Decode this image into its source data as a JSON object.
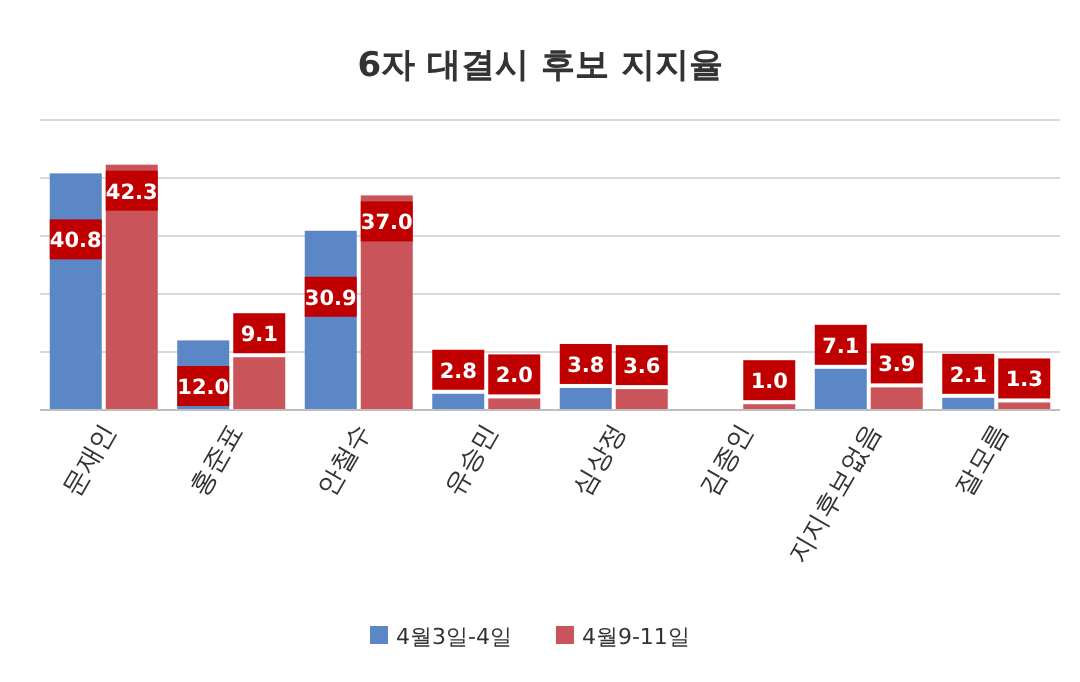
{
  "chart_data": {
    "type": "bar",
    "title": "6자 대결시 후보 지지율",
    "categories": [
      "문재인",
      "홍준표",
      "안철수",
      "유승민",
      "심상정",
      "김종인",
      "지지후보없음",
      "잘모름"
    ],
    "series": [
      {
        "name": "4월3일-4일",
        "color": "#5b87c7",
        "values": [
          40.8,
          12.0,
          30.9,
          2.8,
          3.8,
          null,
          7.1,
          2.1
        ],
        "value_labels": [
          "40.8",
          "12.0",
          "30.9",
          "2.8",
          "3.8",
          null,
          "7.1",
          "2.1"
        ]
      },
      {
        "name": "4월9-11일",
        "color": "#c9555a",
        "values": [
          42.3,
          9.1,
          37.0,
          2.0,
          3.6,
          1.0,
          3.9,
          1.3
        ],
        "value_labels": [
          "42.3",
          "9.1",
          "37.0",
          "2.0",
          "3.6",
          "1.0",
          "3.9",
          "1.3"
        ]
      }
    ],
    "ylim": [
      0,
      50
    ],
    "yticks": [
      {
        "value": 0,
        "label": null
      },
      {
        "value": 10,
        "label": null
      },
      {
        "value": 20,
        "label": null
      },
      {
        "value": 30,
        "label": null
      },
      {
        "value": 40,
        "label": null
      },
      {
        "value": 50,
        "label": null
      }
    ],
    "tick_labels": "x",
    "grid": "y",
    "legend": "bottom"
  }
}
